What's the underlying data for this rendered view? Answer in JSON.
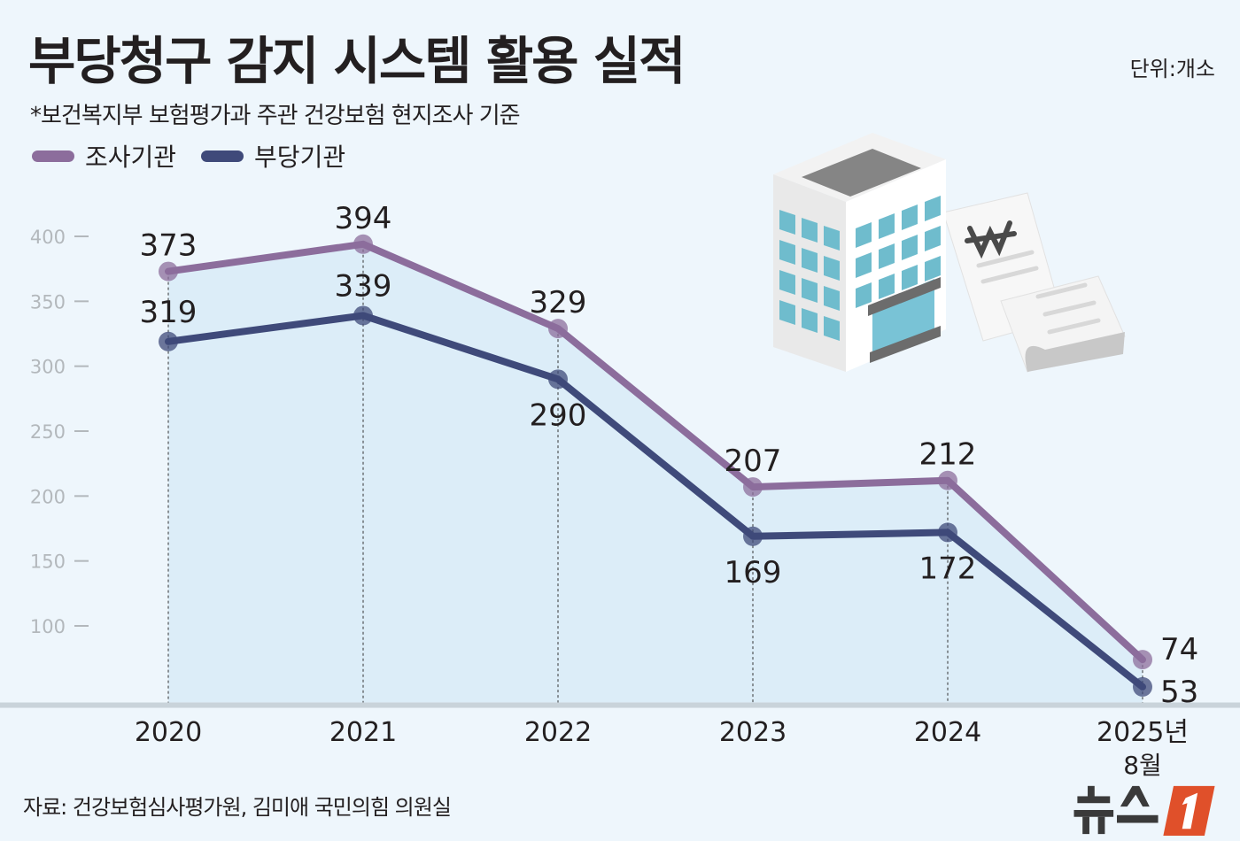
{
  "title": "부당청구 감지 시스템 활용 실적",
  "unit": "단위:개소",
  "subtitle": "*보건복지부 보험평가과 주관 건강보험 현지조사 기준",
  "source": "자료: 건강보험심사평가원, 김미애 국민의힘 의원실",
  "logo_text": "뉴스1",
  "colors": {
    "background": "#eef6fc",
    "area_fill": "#dcedf8",
    "series_1": "#8c6d9c",
    "series_2": "#3f4a7a",
    "logo_accent": "#e0502a"
  },
  "chart_data": {
    "type": "line",
    "categories": [
      "2020",
      "2021",
      "2022",
      "2023",
      "2024",
      "2025년"
    ],
    "category_sublabels": [
      "",
      "",
      "",
      "",
      "",
      "8월"
    ],
    "series": [
      {
        "name": "조사기관",
        "values": [
          373,
          394,
          329,
          207,
          212,
          74
        ]
      },
      {
        "name": "부당기관",
        "values": [
          319,
          339,
          290,
          169,
          172,
          53
        ]
      }
    ],
    "yticks": [
      100,
      150,
      200,
      250,
      300,
      350,
      400
    ],
    "ylim": [
      41,
      420
    ],
    "grid": false,
    "legend": "top-left",
    "area_under_top_series": true,
    "vertical_dotted_guides": true
  }
}
